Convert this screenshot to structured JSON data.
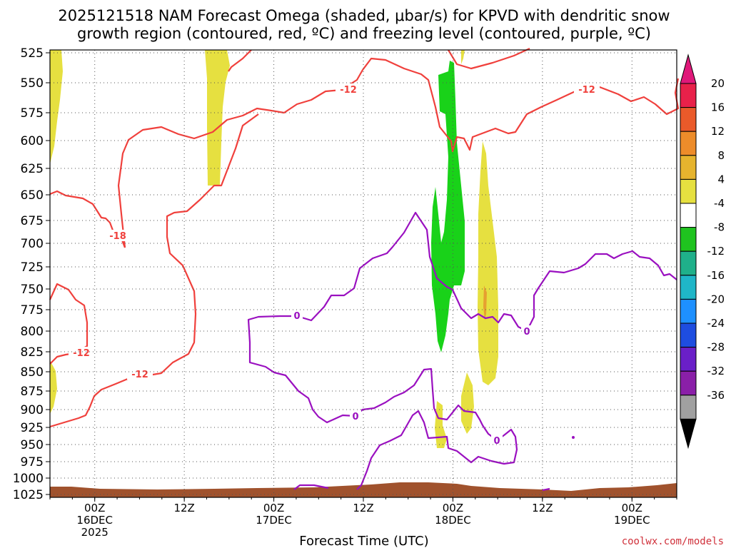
{
  "chart_data": {
    "type": "contour",
    "title_line1": "2025121518 NAM Forecast Omega (shaded, μbar/s) for KPVD with dendritic snow",
    "title_line2": "growth region (contoured, red, ºC) and freezing level (contoured, purple, ºC)",
    "xlabel": "Forecast Time (UTC)",
    "credit": "coolwx.com/models",
    "y_levels": [
      "525",
      "550",
      "575",
      "600",
      "625",
      "650",
      "675",
      "700",
      "725",
      "750",
      "775",
      "800",
      "825",
      "850",
      "875",
      "900",
      "925",
      "950",
      "975",
      "1000",
      "1025"
    ],
    "x_ticks": [
      {
        "h": 6,
        "lines": [
          "00Z",
          "16DEC",
          "2025"
        ]
      },
      {
        "h": 18,
        "lines": [
          "12Z"
        ]
      },
      {
        "h": 30,
        "lines": [
          "00Z",
          "17DEC"
        ]
      },
      {
        "h": 42,
        "lines": [
          "12Z"
        ]
      },
      {
        "h": 54,
        "lines": [
          "00Z",
          "18DEC"
        ]
      },
      {
        "h": 66,
        "lines": [
          "12Z"
        ]
      },
      {
        "h": 78,
        "lines": [
          "00Z",
          "19DEC"
        ]
      }
    ],
    "x_range_hours": [
      0,
      84
    ],
    "colorbar": {
      "labels": [
        "20",
        "16",
        "12",
        "8",
        "4",
        "-4",
        "-8",
        "-12",
        "-16",
        "-20",
        "-24",
        "-28",
        "-32",
        "-36"
      ],
      "colors": [
        "#e8214a",
        "#ea5a2a",
        "#ed8c2a",
        "#e6b42e",
        "#e6e040",
        "#ffffff",
        "#1fc31f",
        "#1fb08a",
        "#1fb6c8",
        "#1e90ff",
        "#1e4de0",
        "#6a1fc8",
        "#8a1fa8",
        "#a0a0a0"
      ],
      "top_arrow": "#e0187a",
      "bottom_arrow": "#000000"
    },
    "contour_labels": {
      "dgz": "-12",
      "dgz_cold": "-18",
      "freezing": "0"
    },
    "colors": {
      "dgz": "#f0403c",
      "freezing": "#9a10c0",
      "omega_pos": "#e6e040",
      "omega_neg": "#19d219",
      "terrain": "#a0522d"
    }
  }
}
